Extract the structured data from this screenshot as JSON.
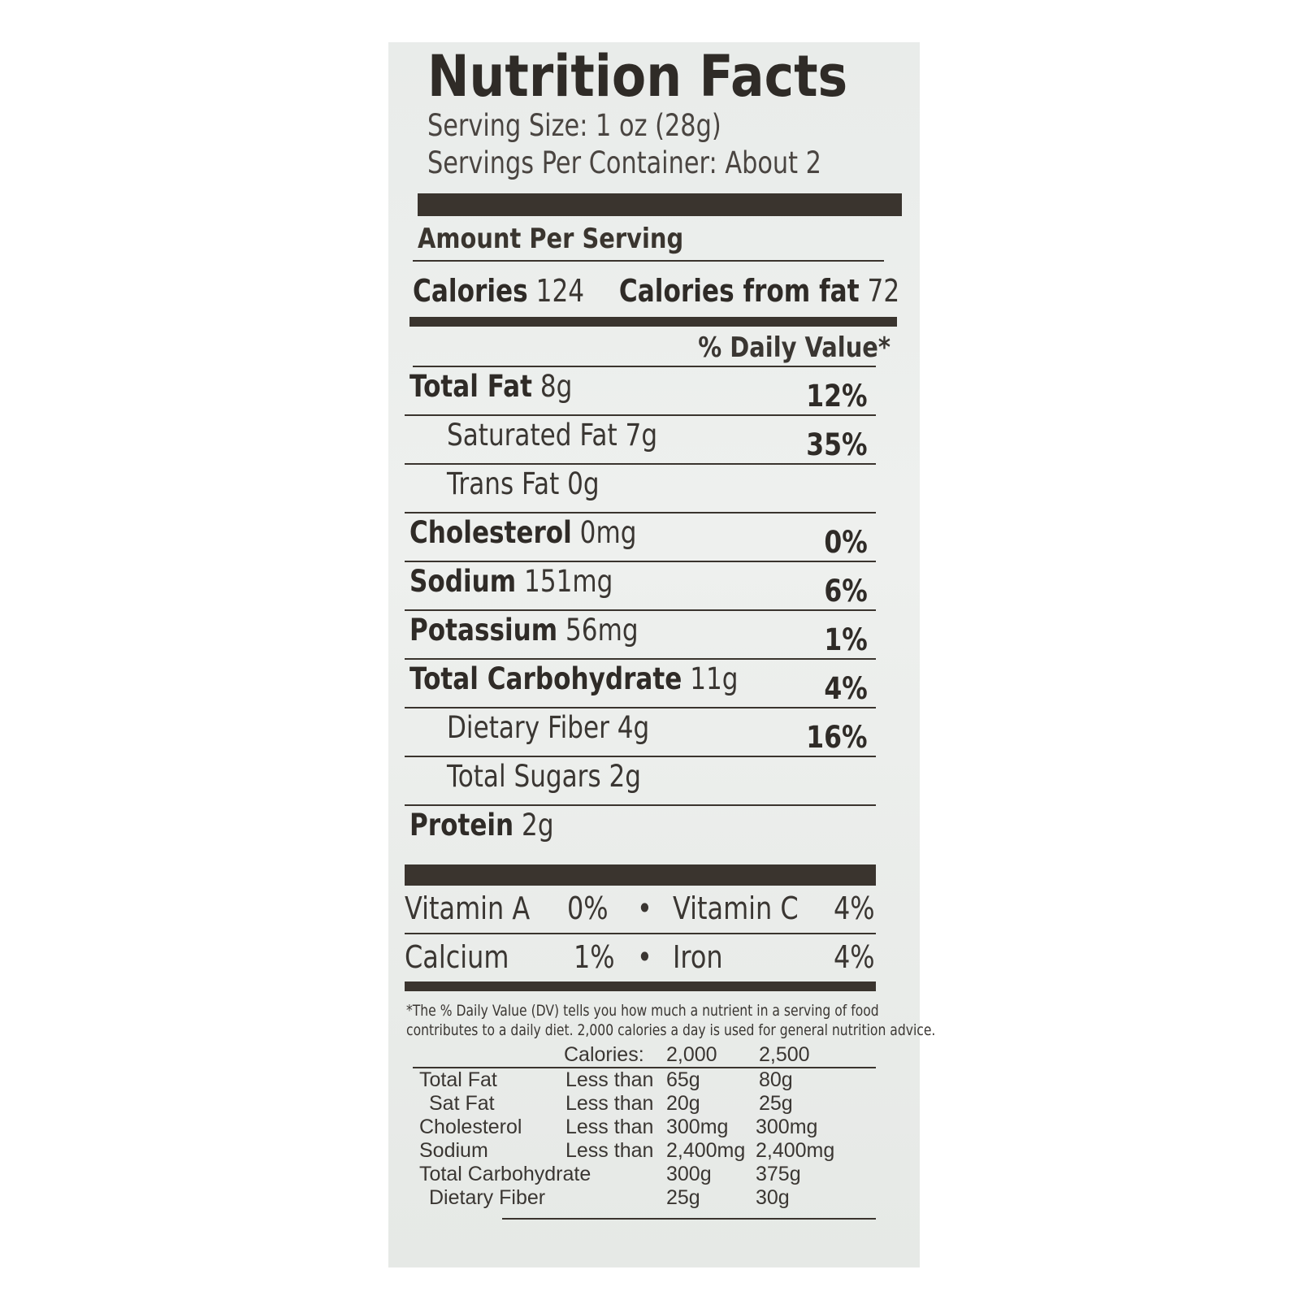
{
  "label": {
    "title": "Nutrition Facts",
    "serving_size": "Serving Size: 1 oz (28g)",
    "servings_per_container": "Servings Per Container: About 2",
    "amount_per_serving": "Amount Per Serving",
    "calories_label": "Calories",
    "calories_value": "124",
    "calories_fat_label": "Calories from fat",
    "calories_fat_value": "72",
    "daily_value_header": "% Daily Value*"
  },
  "nutrients": [
    {
      "name": "Total Fat",
      "amount": "8g",
      "dv": "12%"
    },
    {
      "name": "Saturated Fat",
      "amount": "7g",
      "dv": "35%"
    },
    {
      "name": "Trans Fat",
      "amount": "0g",
      "dv": ""
    },
    {
      "name": "Cholesterol",
      "amount": "0mg",
      "dv": "0%"
    },
    {
      "name": "Sodium",
      "amount": "151mg",
      "dv": "6%"
    },
    {
      "name": "Potassium",
      "amount": "56mg",
      "dv": "1%"
    },
    {
      "name": "Total Carbohydrate",
      "amount": "11g",
      "dv": "4%"
    },
    {
      "name": "Dietary Fiber",
      "amount": "4g",
      "dv": "16%"
    },
    {
      "name": "Total Sugars",
      "amount": "2g",
      "dv": ""
    },
    {
      "name": "Protein",
      "amount": "2g",
      "dv": ""
    }
  ],
  "vitamins": [
    {
      "left_name": "Vitamin A",
      "left_pct": "0%",
      "sep": "•",
      "right_name": "Vitamin C",
      "right_pct": "4%"
    },
    {
      "left_name": "Calcium",
      "left_pct": "1%",
      "sep": "•",
      "right_name": "Iron",
      "right_pct": "4%"
    }
  ],
  "footnote": {
    "line1": "*The % Daily Value (DV) tells you how much a nutrient in a serving of food",
    "line2": "contributes to a daily diet. 2,000 calories a day is used for general nutrition advice.",
    "calories_label": "Calories:",
    "col1": "2,000",
    "col2": "2,500",
    "rows": [
      {
        "name": "Total Fat",
        "qual": "Less than",
        "v1": "65g",
        "v2": "80g"
      },
      {
        "name": "Sat Fat",
        "qual": "Less than",
        "v1": "20g",
        "v2": "25g"
      },
      {
        "name": "Cholesterol",
        "qual": "Less than",
        "v1": "300mg",
        "v2": "300mg"
      },
      {
        "name": "Sodium",
        "qual": "Less than",
        "v1": "2,400mg",
        "v2": "2,400mg"
      },
      {
        "name": "Total Carbohydrate",
        "qual": "",
        "v1": "300g",
        "v2": "375g"
      },
      {
        "name": "Dietary Fiber",
        "qual": "",
        "v1": "25g",
        "v2": "30g"
      }
    ]
  }
}
